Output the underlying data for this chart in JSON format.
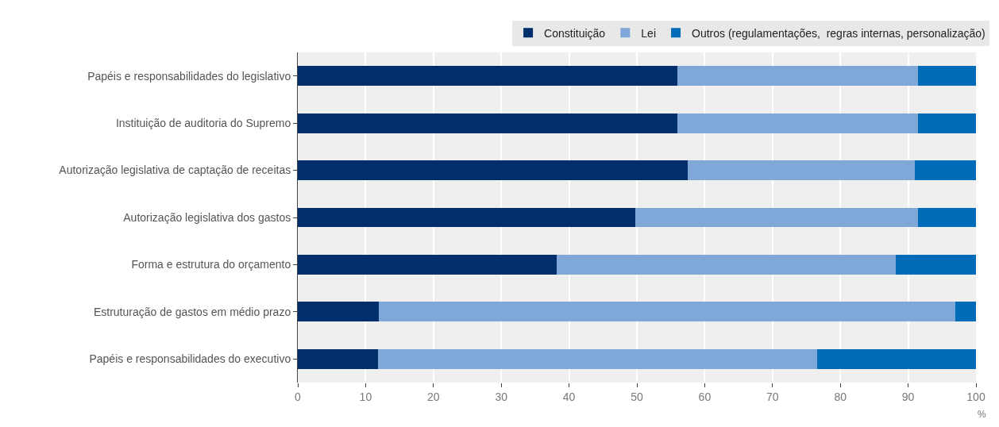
{
  "chart_data": {
    "type": "bar",
    "orientation": "horizontal",
    "stacked": true,
    "xlabel": "%",
    "categories": [
      "Papéis e responsabilidades do legislativo",
      "Instituição de auditoria do Supremo",
      "Autorização legislativa de captação de receitas",
      "Autorização legislativa dos gastos",
      "Forma e estrutura do orçamento",
      "Estruturação de gastos em médio prazo",
      "Papéis e responsabilidades do executivo"
    ],
    "series": [
      {
        "name": "Constituição",
        "color": "#002f6c",
        "values": [
          56,
          56,
          57.5,
          49.8,
          38.2,
          12,
          11.8
        ]
      },
      {
        "name": "Lei",
        "color": "#7fa8d9",
        "values": [
          35.4,
          35.4,
          33.5,
          41.6,
          50,
          85,
          64.8
        ]
      },
      {
        "name": "Outros (regulamentações,  regras internas, personalização)",
        "color": "#006bb6",
        "values": [
          8.6,
          8.6,
          9,
          8.6,
          11.8,
          3,
          23.4
        ]
      }
    ],
    "xlim": [
      0,
      100
    ],
    "xticks": [
      0,
      10,
      20,
      30,
      40,
      50,
      60,
      70,
      80,
      90,
      100
    ],
    "grid": "x",
    "legend": "top"
  }
}
